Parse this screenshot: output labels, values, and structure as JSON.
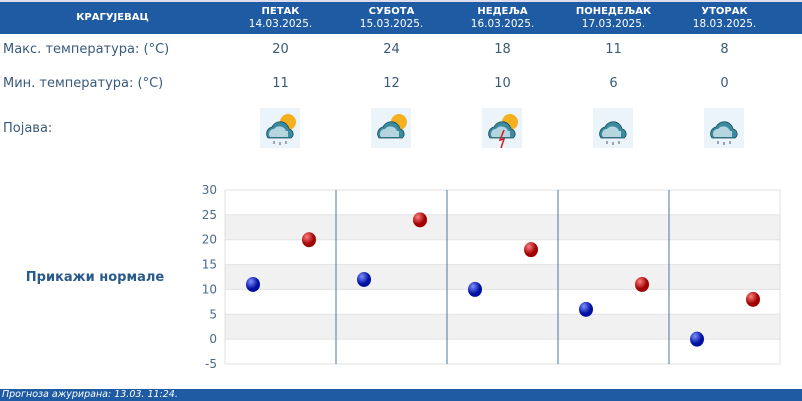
{
  "header": {
    "city": "КРАГУЈЕВАЦ"
  },
  "days": [
    {
      "name": "ПЕТАК",
      "date": "14.03.2025.",
      "max": "20",
      "min": "11",
      "icon": "partly-cloudy-light-rain-icon"
    },
    {
      "name": "СУБОТА",
      "date": "15.03.2025.",
      "max": "24",
      "min": "12",
      "icon": "partly-cloudy-icon"
    },
    {
      "name": "НЕДЕЉА",
      "date": "16.03.2025.",
      "max": "18",
      "min": "10",
      "icon": "thunderstorm-icon"
    },
    {
      "name": "ПОНЕДЕЉАК",
      "date": "17.03.2025.",
      "max": "11",
      "min": "6",
      "icon": "cloudy-rain-icon"
    },
    {
      "name": "УТОРАК",
      "date": "18.03.2025.",
      "max": "8",
      "min": "0",
      "icon": "cloudy-light-rain-icon"
    }
  ],
  "labels": {
    "max": "Макс. температура: (°C)",
    "min": "Мин. температура: (°C)",
    "phenomenon": "Појава:"
  },
  "normals_link": "Прикажи нормале",
  "footer": "Прогноза ажурирана:  13.03. 11:24.",
  "chart_data": {
    "type": "scatter",
    "categories": [
      "14.03.2025.",
      "15.03.2025.",
      "16.03.2025.",
      "17.03.2025.",
      "18.03.2025."
    ],
    "series": [
      {
        "values": [
          11,
          12,
          10,
          6,
          0
        ],
        "color": "#0a14b4"
      },
      {
        "values": [
          20,
          24,
          18,
          11,
          8
        ],
        "color": "#c00000"
      }
    ],
    "ylim": [
      -5,
      30
    ],
    "yticks": [
      "30",
      "25",
      "20",
      "15",
      "10",
      "5",
      "0",
      "-5"
    ],
    "grid": true
  }
}
